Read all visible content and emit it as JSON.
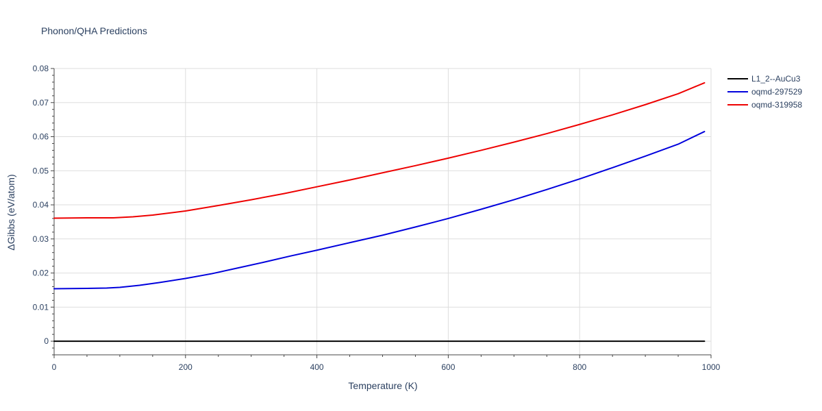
{
  "chart_data": {
    "type": "line",
    "title": "Phonon/QHA Predictions",
    "xlabel": "Temperature (K)",
    "ylabel": "ΔGibbs (eV/atom)",
    "xlim": [
      0,
      1000
    ],
    "ylim": [
      -0.004,
      0.08
    ],
    "x_ticks": [
      0,
      200,
      400,
      600,
      800,
      1000
    ],
    "y_ticks": [
      0,
      0.01,
      0.02,
      0.03,
      0.04,
      0.05,
      0.06,
      0.07,
      0.08
    ],
    "x_tick_labels": [
      "0",
      "200",
      "400",
      "600",
      "800",
      "1000"
    ],
    "y_tick_labels": [
      "0",
      "0.01",
      "0.02",
      "0.03",
      "0.04",
      "0.05",
      "0.06",
      "0.07",
      "0.08"
    ],
    "grid": true,
    "legend_position": "top-right",
    "series": [
      {
        "name": "L1_2--AuCu3",
        "color": "#000000",
        "x": [
          0,
          100,
          200,
          300,
          400,
          500,
          600,
          700,
          800,
          900,
          990
        ],
        "y": [
          0,
          0,
          0,
          0,
          0,
          0,
          0,
          0,
          0,
          0,
          0
        ]
      },
      {
        "name": "oqmd-297529",
        "color": "#0000dd",
        "x": [
          0,
          50,
          80,
          100,
          130,
          160,
          200,
          240,
          280,
          320,
          360,
          400,
          450,
          500,
          550,
          600,
          650,
          700,
          750,
          800,
          850,
          900,
          950,
          990
        ],
        "y": [
          0.0154,
          0.0155,
          0.0156,
          0.0158,
          0.0164,
          0.0172,
          0.0184,
          0.0198,
          0.0215,
          0.0232,
          0.025,
          0.0267,
          0.0289,
          0.0311,
          0.0335,
          0.036,
          0.0387,
          0.0415,
          0.0445,
          0.0476,
          0.0509,
          0.0543,
          0.0578,
          0.0615
        ]
      },
      {
        "name": "oqmd-319958",
        "color": "#ee0000",
        "x": [
          0,
          50,
          90,
          120,
          150,
          200,
          250,
          300,
          350,
          400,
          450,
          500,
          550,
          600,
          650,
          700,
          750,
          800,
          850,
          900,
          950,
          990
        ],
        "y": [
          0.0361,
          0.0362,
          0.0362,
          0.0365,
          0.037,
          0.0382,
          0.0398,
          0.0415,
          0.0433,
          0.0453,
          0.0473,
          0.0494,
          0.0515,
          0.0537,
          0.056,
          0.0584,
          0.0609,
          0.0636,
          0.0664,
          0.0694,
          0.0726,
          0.0758
        ]
      }
    ]
  }
}
